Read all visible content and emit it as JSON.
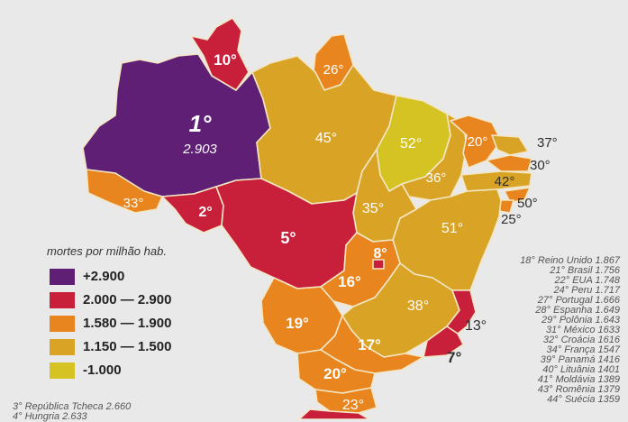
{
  "legend": {
    "title": "mortes por milhão hab.",
    "items": [
      {
        "label": "+2.900",
        "color": "#5e1f74"
      },
      {
        "label": "2.000 — 2.900",
        "color": "#c81f3a"
      },
      {
        "label": "1.580 — 1.900",
        "color": "#e8851f"
      },
      {
        "label": "1.150 — 1.500",
        "color": "#d9a326"
      },
      {
        "label": "-1.000",
        "color": "#d4c322"
      }
    ]
  },
  "ranks": {
    "am": "1°",
    "am_value": "2.903",
    "rr": "10°",
    "ap": "26°",
    "pa": "45°",
    "ma": "52°",
    "ce": "20°",
    "rn": "37°",
    "pb": "30°",
    "pe": "42°",
    "al": "50°",
    "se": "25°",
    "pi": "36°",
    "ba": "51°",
    "to": "35°",
    "ac": "33°",
    "ro": "2°",
    "mt": "5°",
    "df": "8°",
    "go": "16°",
    "mg": "38°",
    "es": "13°",
    "rj": "7°",
    "ms": "19°",
    "sp": "17°",
    "pr": "20°",
    "sc": "23°"
  },
  "countries": [
    "18° Reino Unido 1.867",
    "21° Brasil 1.756",
    "22° EUA 1.748",
    "24° Peru 1.717",
    "27° Portugal 1.666",
    "28° Espanha 1.649",
    "29° Polônia 1.643",
    "31° México 1633",
    "32° Croácia 1616",
    "34° França 1547",
    "39° Panamá 1416",
    "40° Lituânia 1401",
    "41° Moldávia 1389",
    "43° Romênia 1379",
    "44° Suécia 1359"
  ],
  "others": [
    "3° República Tcheca 2.660",
    "4° Hungria 2.633"
  ]
}
